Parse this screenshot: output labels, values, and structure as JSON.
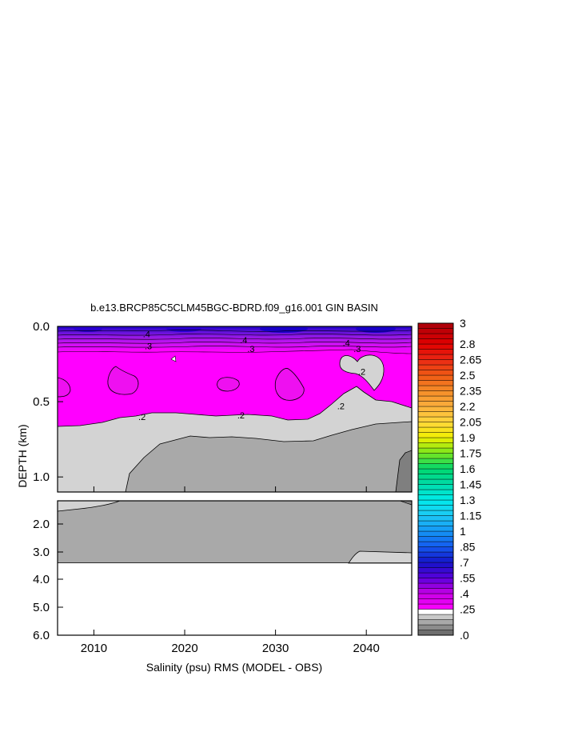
{
  "chart_data": {
    "type": "heatmap",
    "title": "b.e13.BRCP85C5CLM45BGC-BDRD.f09_g16.001 GIN BASIN",
    "xlabel": "Salinity (psu) RMS (MODEL - OBS)",
    "ylabel": "DEPTH (km)",
    "xlim": [
      2006,
      2045
    ],
    "x_ticks": [
      "2010",
      "2020",
      "2030",
      "2040"
    ],
    "x_tick_values": [
      2010,
      2020,
      2030,
      2040
    ],
    "upper_panel": {
      "ylim": [
        0.0,
        1.1
      ],
      "y_ticks": [
        "0.0",
        "0.5",
        "1.0"
      ],
      "y_tick_values": [
        0.0,
        0.5,
        1.0
      ]
    },
    "lower_panel": {
      "ylim": [
        1.1,
        6.0
      ],
      "y_ticks": [
        "2.0",
        "3.0",
        "4.0",
        "5.0",
        "6.0"
      ],
      "y_tick_values": [
        2.0,
        3.0,
        4.0,
        5.0,
        6.0
      ],
      "data_floor_depth": 3.4
    },
    "contour_labels": [
      {
        "text": ".4",
        "x": 2015.8,
        "y": 0.05
      },
      {
        "text": ".3",
        "x": 2016.0,
        "y": 0.13
      },
      {
        "text": ".4",
        "x": 2026.5,
        "y": 0.09
      },
      {
        "text": ".3",
        "x": 2027.3,
        "y": 0.15
      },
      {
        "text": ".4",
        "x": 2037.8,
        "y": 0.11
      },
      {
        "text": ".3",
        "x": 2039.0,
        "y": 0.15
      },
      {
        "text": ".2",
        "x": 2039.5,
        "y": 0.3
      },
      {
        "text": ".2",
        "x": 2015.3,
        "y": 0.6
      },
      {
        "text": ".2",
        "x": 2026.2,
        "y": 0.59
      },
      {
        "text": ".2",
        "x": 2037.2,
        "y": 0.53
      }
    ],
    "colorbar": {
      "min": 0.0,
      "max": 3.0,
      "step": 0.05,
      "tick_labels": [
        "3",
        "2.8",
        "2.65",
        "2.5",
        "2.35",
        "2.2",
        "2.05",
        "1.9",
        "1.75",
        "1.6",
        "1.45",
        "1.3",
        "1.15",
        "1",
        ".85",
        ".7",
        ".55",
        ".4",
        ".25",
        ".0"
      ],
      "tick_values": [
        3.0,
        2.8,
        2.65,
        2.5,
        2.35,
        2.2,
        2.05,
        1.9,
        1.75,
        1.6,
        1.45,
        1.3,
        1.15,
        1.0,
        0.85,
        0.7,
        0.55,
        0.4,
        0.25,
        0.0
      ]
    },
    "colors": {
      "magenta": "#ff00ff",
      "light_gray": "#d3d3d3",
      "mid_gray": "#a9a9a9",
      "dark_gray": "#7f7f7f",
      "deep_blue": "#1a00c8"
    }
  }
}
